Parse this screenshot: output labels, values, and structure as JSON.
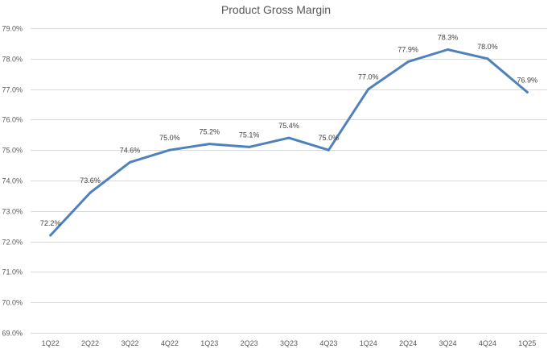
{
  "chart_data": {
    "type": "line",
    "title": "Product Gross Margin",
    "xlabel": "",
    "ylabel": "",
    "categories": [
      "1Q22",
      "2Q22",
      "3Q22",
      "4Q22",
      "1Q23",
      "2Q23",
      "3Q23",
      "4Q23",
      "1Q24",
      "2Q24",
      "3Q24",
      "4Q24",
      "1Q25"
    ],
    "series": [
      {
        "values": [
          72.2,
          73.6,
          74.6,
          75.0,
          75.2,
          75.1,
          75.4,
          75.0,
          77.0,
          77.9,
          78.3,
          78.0,
          76.9
        ],
        "labels": [
          "72.2%",
          "73.6%",
          "74.6%",
          "75.0%",
          "75.2%",
          "75.1%",
          "75.4%",
          "75.0%",
          "77.0%",
          "77.9%",
          "78.3%",
          "78.0%",
          "76.9%"
        ],
        "color": "#4f81bd"
      }
    ],
    "ylim": [
      69.0,
      79.0
    ],
    "yticks": [
      69.0,
      70.0,
      71.0,
      72.0,
      73.0,
      74.0,
      75.0,
      76.0,
      77.0,
      78.0,
      79.0
    ],
    "ytick_labels": [
      "69.0%",
      "70.0%",
      "71.0%",
      "72.0%",
      "73.0%",
      "74.0%",
      "75.0%",
      "76.0%",
      "77.0%",
      "78.0%",
      "79.0%"
    ],
    "grid": true,
    "legend": "none"
  }
}
